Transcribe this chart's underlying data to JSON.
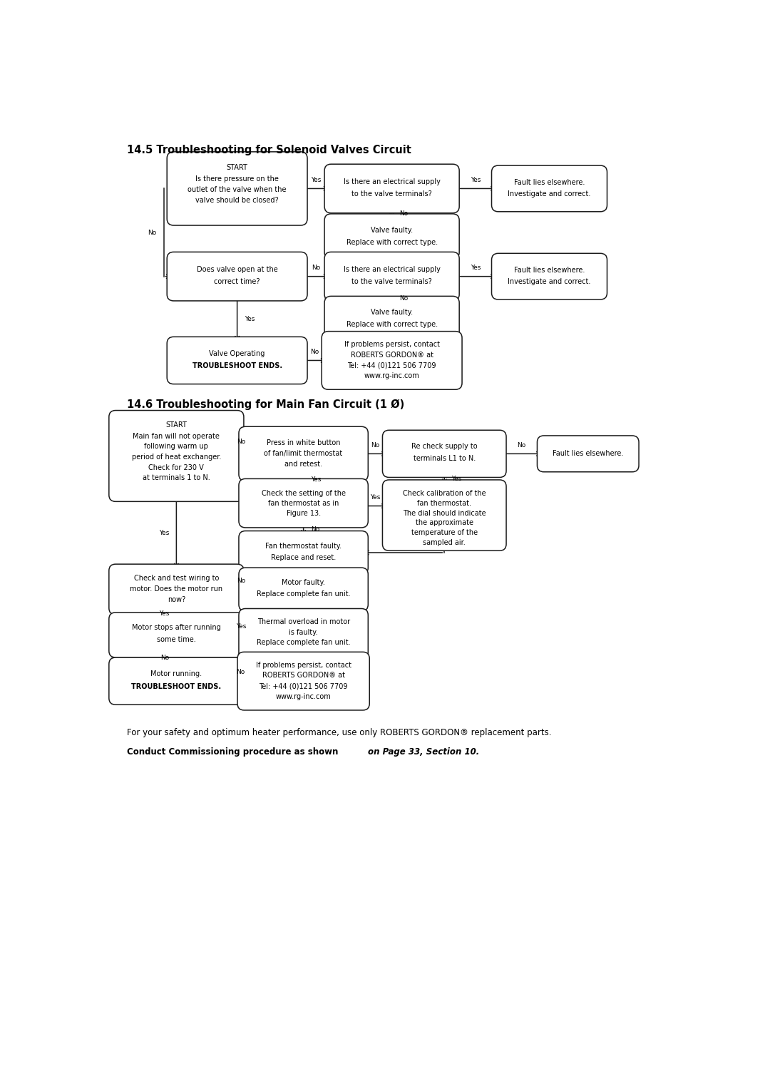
{
  "bg_color": "#ffffff",
  "title1": "14.5 Troubleshooting for Solenoid Valves Circuit",
  "title2": "14.6 Troubleshooting for Main Fan Circuit (1 Ø)",
  "footer_line1": "For your safety and optimum heater performance, use only ROBERTS GORDON® replacement parts.",
  "footer_line2_bold": "Conduct Commissioning procedure as shown ",
  "footer_line2_italic": "on Page 33, Section 10.",
  "title_fontsize": 10.5,
  "body_fontsize": 7.0,
  "small_fontsize": 6.5,
  "arrow_color": "#1a1a1a",
  "box_edge_color": "#1a1a1a",
  "box_face_color": "#ffffff",
  "text_color": "#000000"
}
